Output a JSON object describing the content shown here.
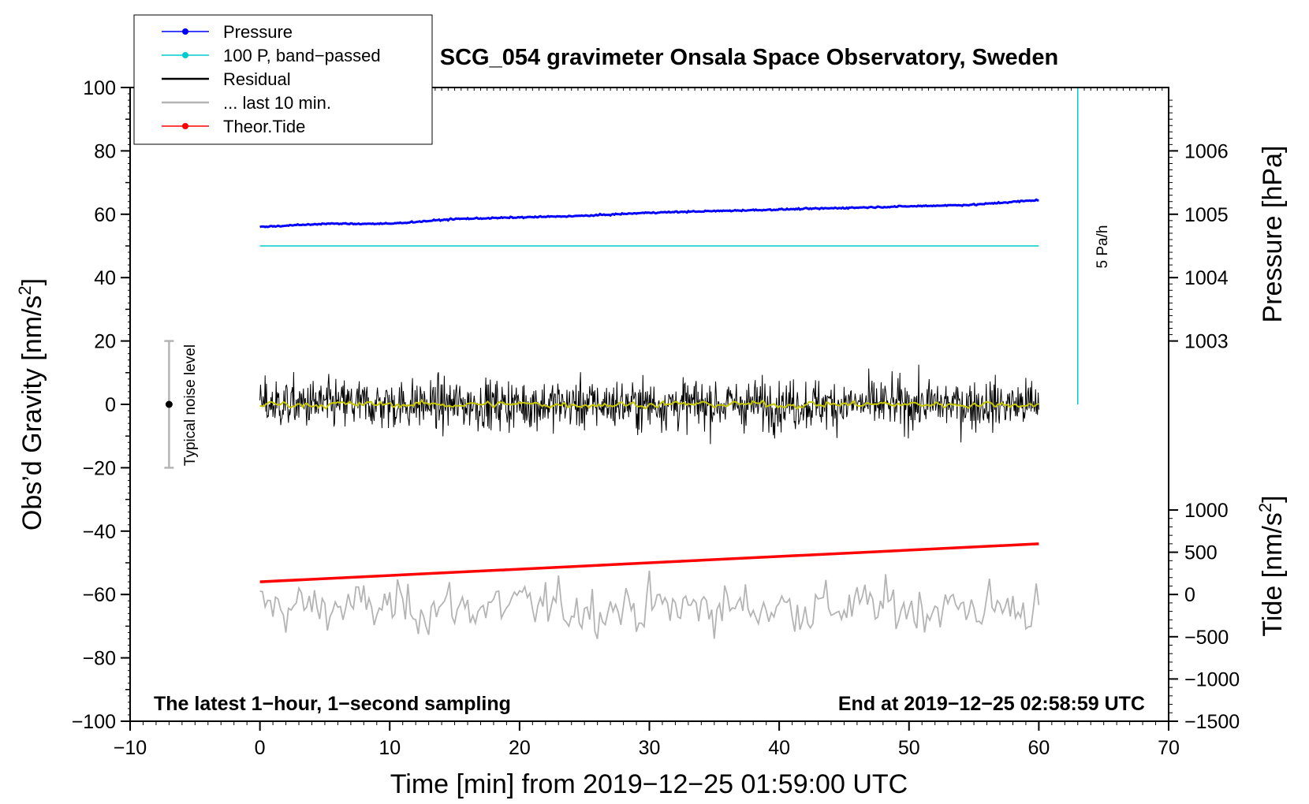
{
  "chart_data": {
    "type": "line",
    "title": "SCG_054 gravimeter Onsala Space Observatory, Sweden",
    "xlabel": "Time [min] from 2019−12−25 01:59:00 UTC",
    "ylabel": "Obs’d Gravity [nm/s",
    "ylabel_sup": "2",
    "ylabel_end": "]",
    "xlim": [
      -10,
      70
    ],
    "ylim": [
      -100,
      100
    ],
    "xticks": [
      -10,
      0,
      10,
      20,
      30,
      40,
      50,
      60,
      70
    ],
    "yticks": [
      -100,
      -80,
      -60,
      -40,
      -20,
      0,
      20,
      40,
      60,
      80,
      100
    ],
    "right_axes": {
      "pressure": {
        "label": "Pressure [hPa]",
        "ticks": [
          1003,
          1004,
          1005,
          1006
        ],
        "mapping": {
          "hPa": [
            1003,
            1006
          ],
          "gravity": [
            20,
            80
          ]
        }
      },
      "tide": {
        "label": "Tide [nm/s",
        "label_sup": "2",
        "label_end": "]",
        "ticks": [
          -1500,
          -1000,
          -500,
          0,
          500,
          1000
        ],
        "mapping": {
          "tide": [
            -1500,
            1000
          ],
          "gravity": [
            -100,
            -33.33
          ]
        }
      }
    },
    "legend": {
      "position": "top-left",
      "entries": [
        {
          "label": "Pressure",
          "color": "#0000ff",
          "marker": true
        },
        {
          "label": "100 P, band−passed",
          "color": "#00cccc",
          "marker": true
        },
        {
          "label": "Residual",
          "color": "#000000",
          "marker": false
        },
        {
          "label": "... last 10 min.",
          "color": "#b4b4b4",
          "marker": false
        },
        {
          "label": "Theor.Tide",
          "color": "#ff0000",
          "marker": true
        }
      ]
    },
    "series": [
      {
        "name": "Pressure",
        "color": "#0000ff",
        "units": "gravity-axis",
        "x": [
          0,
          5,
          10,
          15,
          20,
          25,
          30,
          35,
          40,
          45,
          50,
          55,
          60
        ],
        "values": [
          56,
          57,
          57,
          58.5,
          59,
          59.5,
          60.5,
          61,
          61.5,
          62,
          62.5,
          63,
          64.5
        ]
      },
      {
        "name": "100 P, band−passed",
        "color": "#00cccc",
        "x": [
          0,
          60
        ],
        "values": [
          50,
          50
        ]
      },
      {
        "name": "Residual",
        "color": "#000000",
        "amplitude": 7,
        "range_min": [
          -17,
          20
        ],
        "x_range": [
          0,
          60
        ]
      },
      {
        "name": "Residual smoothed",
        "color": "#c8c800",
        "values_level": 0
      },
      {
        "name": "... last 10 min.",
        "color": "#b4b4b4",
        "center": -64,
        "amplitude": 6,
        "range_min": [
          -80,
          -43
        ]
      },
      {
        "name": "Theor.Tide",
        "color": "#ff0000",
        "x": [
          0,
          60
        ],
        "values": [
          -56,
          -44
        ]
      }
    ],
    "annotations": {
      "noise_label": "Typical noise level",
      "noise_range": [
        -20,
        20
      ],
      "noise_x": -7,
      "rate_label": "5 Pa/h",
      "rate_line": {
        "x": 63,
        "y": [
          0,
          100
        ]
      },
      "bottom_left": "The latest 1−hour, 1−second sampling",
      "bottom_right": "End at 2019−12−25 02:58:59 UTC"
    }
  }
}
